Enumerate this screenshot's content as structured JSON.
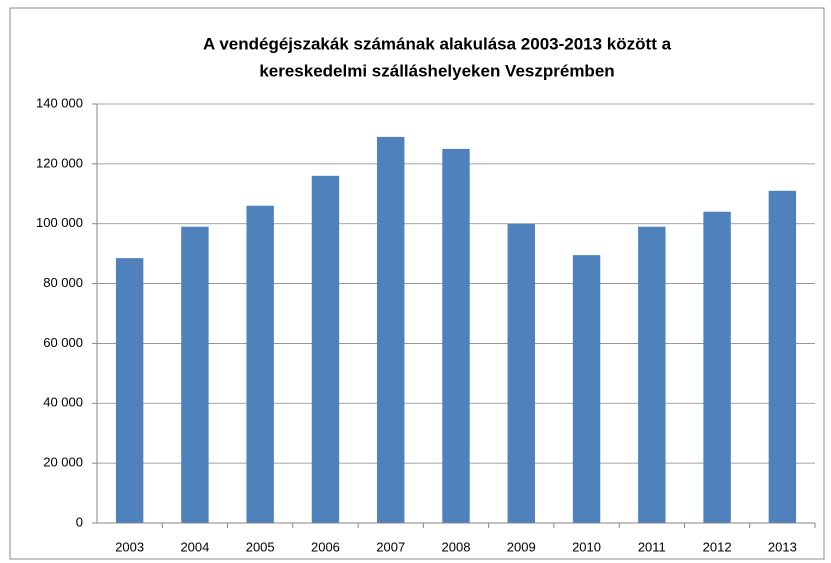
{
  "chart_data": {
    "type": "bar",
    "title": [
      "A vendégéjszakák számának alakulása 2003-2013 között a",
      "kereskedelmi szálláshelyeken Veszprémben"
    ],
    "categories": [
      "2003",
      "2004",
      "2005",
      "2006",
      "2007",
      "2008",
      "2009",
      "2010",
      "2011",
      "2012",
      "2013"
    ],
    "values": [
      88500,
      99000,
      106000,
      116000,
      129000,
      125000,
      100000,
      89500,
      99000,
      104000,
      111000
    ],
    "color": "#4f81bd",
    "ylim": [
      0,
      140000
    ],
    "yticks": [
      0,
      {
        "value": 20000,
        "label": "20 000"
      },
      {
        "value": 40000,
        "label": "40 000"
      },
      {
        "value": 60000,
        "label": "60 000"
      },
      {
        "value": 80000,
        "label": "80 000"
      },
      {
        "value": 100000,
        "label": "100 000"
      },
      {
        "value": 120000,
        "label": "120 000"
      },
      {
        "value": 140000,
        "label": "140 000"
      }
    ],
    "grid": true
  }
}
